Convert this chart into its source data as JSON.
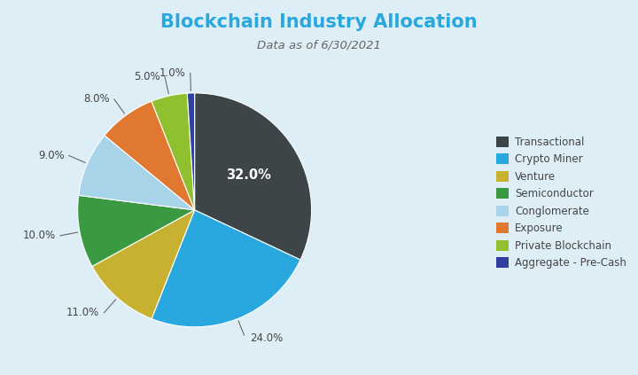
{
  "title": "Blockchain Industry Allocation",
  "subtitle": "Data as of 6/30/2021",
  "background_color": "#deeef7",
  "title_color": "#29a8e0",
  "subtitle_color": "#666666",
  "labels": [
    "Transactional",
    "Crypto Miner",
    "Venture",
    "Semiconductor",
    "Conglomerate",
    "Exposure",
    "Private Blockchain",
    "Aggregate - Pre-Cash"
  ],
  "values": [
    32.0,
    24.0,
    11.0,
    10.0,
    9.0,
    8.0,
    5.0,
    1.0
  ],
  "colors": [
    "#3d4549",
    "#29a8e0",
    "#c8b030",
    "#3a9a42",
    "#a8d4ea",
    "#e07830",
    "#90c030",
    "#3040a0"
  ],
  "startangle": 90,
  "pct_labels": [
    "32.0%",
    "24.0%",
    "11.0%",
    "10.0%",
    "9.0%",
    "8.0%",
    "5.0%",
    "1.0%"
  ]
}
